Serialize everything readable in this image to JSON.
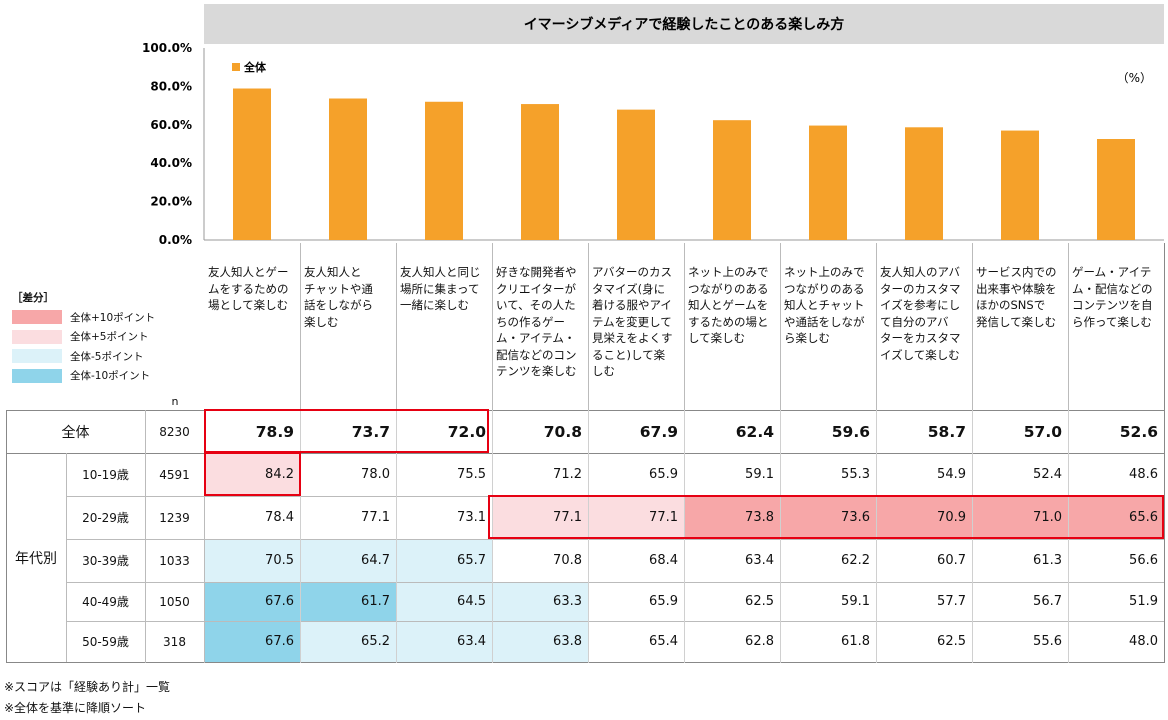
{
  "chart_data": {
    "type": "bar",
    "title": "イマーシブメディアで経験したことのある楽しみ方",
    "unit_label": "（%）",
    "y_ticks": [
      "100.0%",
      "80.0%",
      "60.0%",
      "40.0%",
      "20.0%",
      "0.0%"
    ],
    "ylim": [
      0,
      100
    ],
    "series": [
      {
        "name": "全体",
        "color": "#F5A12A",
        "values": [
          78.9,
          73.7,
          72.0,
          70.8,
          67.9,
          62.4,
          59.6,
          58.7,
          57.0,
          52.6
        ]
      }
    ],
    "categories": [
      "友人知人とゲームをするための場として楽しむ",
      "友人知人とチャットや通話をしながら楽しむ",
      "友人知人と同じ場所に集まって一緒に楽しむ",
      "好きな開発者やクリエイターがいて、その人たちの作るゲーム・アイテム・配信などのコンテンツを楽しむ",
      "アバターのカスタマイズ(身に着ける服やアイテムを変更して見栄えをよくすること)して楽しむ",
      "ネット上のみでつながりのある知人とゲームをするための場として楽しむ",
      "ネット上のみでつながりのある知人とチャットや通話をしながら楽しむ",
      "友人知人のアバターのカスタマイズを参考にして自分のアバターをカスタマイズして楽しむ",
      "サービス内での出来事や体験をほかのSNSで発信して楽しむ",
      "ゲーム・アイテム・配信などのコンテンツを自ら作って楽しむ"
    ],
    "header_lines": [
      [
        "友人知人とゲー",
        "ムをするための",
        "場として楽しむ"
      ],
      [
        "友人知人と",
        "チャットや通",
        "話をしながら",
        "楽しむ"
      ],
      [
        "友人知人と同じ",
        "場所に集まって",
        "一緒に楽しむ"
      ],
      [
        "好きな開発者や",
        "クリエイターが",
        "いて、その人た",
        "ちの作るゲー",
        "ム・アイテム・",
        "配信などのコン",
        "テンツを楽しむ"
      ],
      [
        "アバターのカス",
        "タマイズ(身に",
        "着ける服やアイ",
        "テムを変更して",
        "見栄えをよくす",
        "ること)して楽",
        "しむ"
      ],
      [
        "ネット上のみで",
        "つながりのある",
        "知人とゲームを",
        "するための場と",
        "して楽しむ"
      ],
      [
        "ネット上のみで",
        "つながりのある",
        "知人とチャット",
        "や通話をしなが",
        "ら楽しむ"
      ],
      [
        "友人知人のアバ",
        "ターのカスタマ",
        "イズを参考にし",
        "て自分のアバ",
        "ターをカスタマ",
        "イズして楽しむ"
      ],
      [
        "サービス内での",
        "出来事や体験を",
        "ほかのSNSで",
        "発信して楽しむ"
      ],
      [
        "ゲーム・アイテ",
        "ム・配信などの",
        "コンテンツを自",
        "ら作って楽しむ"
      ]
    ],
    "legend": {
      "title": "［差分］",
      "items": [
        {
          "label": "全体+10ポイント",
          "color": "#F7A7A8"
        },
        {
          "label": "全体+5ポイント",
          "color": "#FBDDE0"
        },
        {
          "label": "全体-5ポイント",
          "color": "#DCF2F9"
        },
        {
          "label": "全体-10ポイント",
          "color": "#8FD4EA"
        }
      ]
    },
    "table": {
      "n_label": "n",
      "group_label": "年代別",
      "rows": [
        {
          "label": "全体",
          "n": "8230",
          "total": true,
          "values": [
            "78.9",
            "73.7",
            "72.0",
            "70.8",
            "67.9",
            "62.4",
            "59.6",
            "58.7",
            "57.0",
            "52.6"
          ],
          "levels": [
            0,
            0,
            0,
            0,
            0,
            0,
            0,
            0,
            0,
            0
          ]
        },
        {
          "label": "10-19歳",
          "n": "4591",
          "values": [
            "84.2",
            "78.0",
            "75.5",
            "71.2",
            "65.9",
            "59.1",
            "55.3",
            "54.9",
            "52.4",
            "48.6"
          ],
          "levels": [
            1,
            0,
            0,
            0,
            0,
            0,
            0,
            0,
            0,
            0
          ]
        },
        {
          "label": "20-29歳",
          "n": "1239",
          "values": [
            "78.4",
            "77.1",
            "73.1",
            "77.1",
            "77.1",
            "73.8",
            "73.6",
            "70.9",
            "71.0",
            "65.6"
          ],
          "levels": [
            0,
            0,
            0,
            1,
            1,
            2,
            2,
            2,
            2,
            2
          ]
        },
        {
          "label": "30-39歳",
          "n": "1033",
          "values": [
            "70.5",
            "64.7",
            "65.7",
            "70.8",
            "68.4",
            "63.4",
            "62.2",
            "60.7",
            "61.3",
            "56.6"
          ],
          "levels": [
            -1,
            -1,
            -1,
            0,
            0,
            0,
            0,
            0,
            0,
            0
          ]
        },
        {
          "label": "40-49歳",
          "n": "1050",
          "values": [
            "67.6",
            "61.7",
            "64.5",
            "63.3",
            "65.9",
            "62.5",
            "59.1",
            "57.7",
            "56.7",
            "51.9"
          ],
          "levels": [
            -2,
            -2,
            -1,
            -1,
            0,
            0,
            0,
            0,
            0,
            0
          ]
        },
        {
          "label": "50-59歳",
          "n": "318",
          "values": [
            "67.6",
            "65.2",
            "63.4",
            "63.8",
            "65.4",
            "62.8",
            "61.8",
            "62.5",
            "55.6",
            "48.0"
          ],
          "levels": [
            -2,
            -1,
            -1,
            -1,
            0,
            0,
            0,
            0,
            0,
            0
          ]
        }
      ]
    }
  },
  "notes": [
    "※スコアは「経験あり計」一覧",
    "※全体を基準に降順ソート"
  ]
}
